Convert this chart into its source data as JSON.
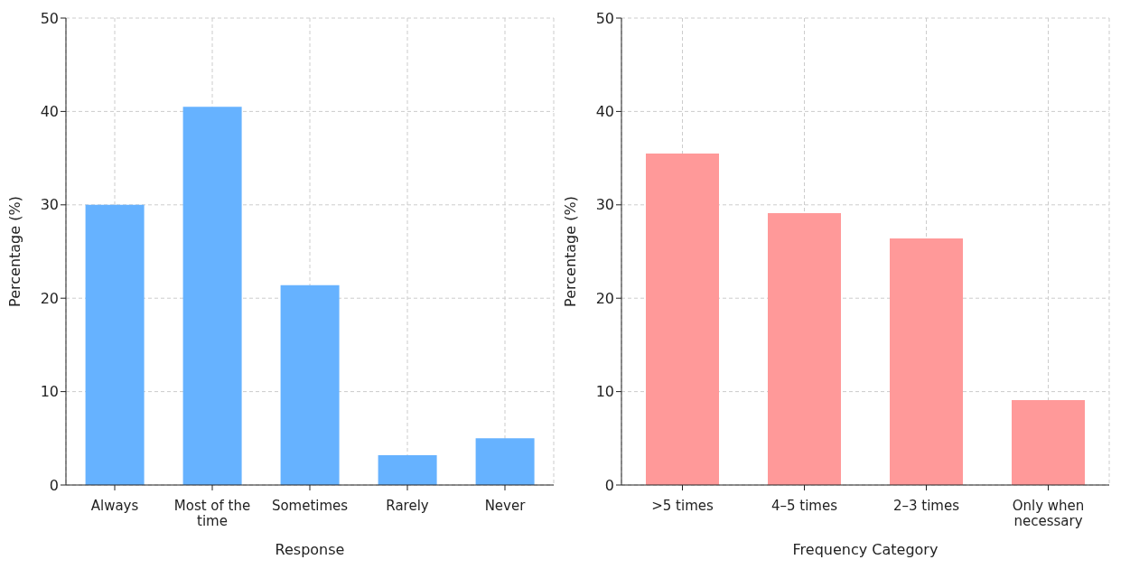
{
  "chart_data": [
    {
      "type": "bar",
      "xlabel": "Response",
      "ylabel": "Percentage (%)",
      "categories": [
        "Always",
        "Most of the time",
        "Sometimes",
        "Rarely",
        "Never"
      ],
      "values": [
        30,
        40.5,
        21.4,
        3.2,
        5.0
      ],
      "color": "#66b2ff",
      "ylim": [
        0,
        50
      ],
      "yticks": [
        0,
        10,
        20,
        30,
        40,
        50
      ],
      "grid": true
    },
    {
      "type": "bar",
      "xlabel": "Frequency Category",
      "ylabel": "Percentage (%)",
      "categories": [
        ">5 times",
        "4–5 times",
        "2–3 times",
        "Only when necessary"
      ],
      "values": [
        35.5,
        29.1,
        26.4,
        9.1
      ],
      "color": "#ff9999",
      "ylim": [
        0,
        50
      ],
      "yticks": [
        0,
        10,
        20,
        30,
        40,
        50
      ],
      "grid": true
    }
  ]
}
